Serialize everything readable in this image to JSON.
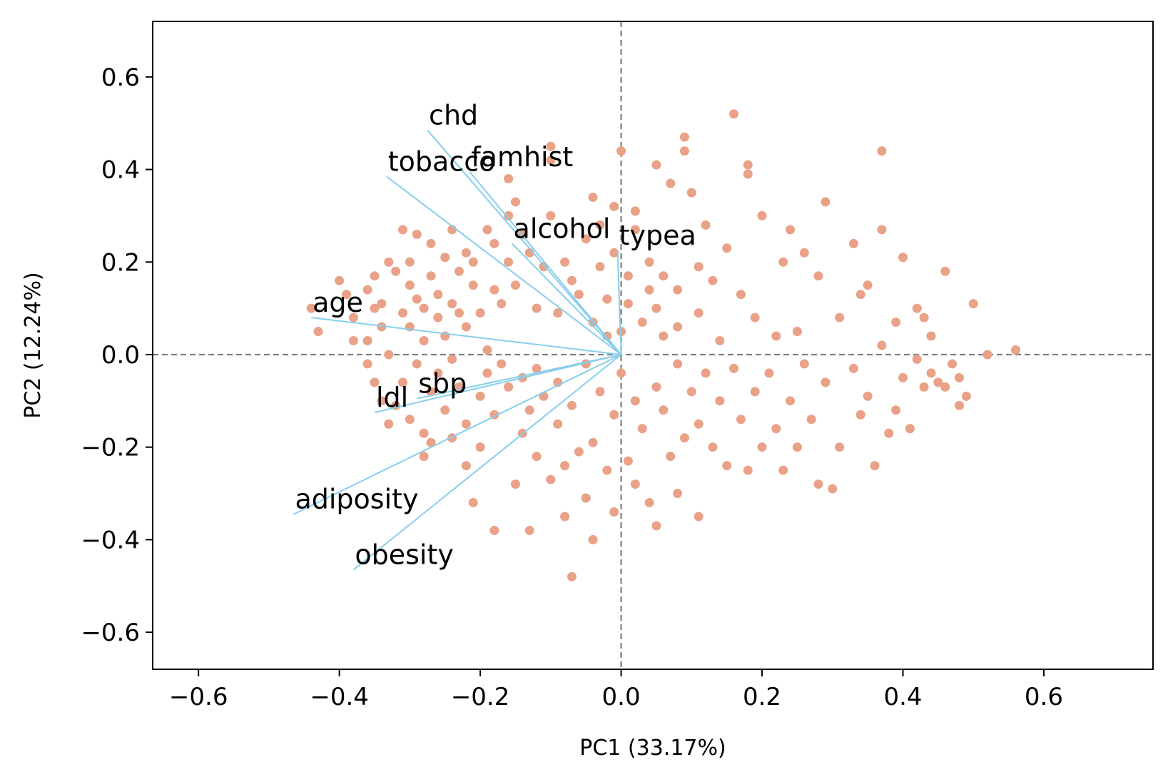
{
  "chart_data": {
    "type": "scatter",
    "title": "",
    "xlabel": "PC1 (33.17%)",
    "ylabel": "PC2 (12.24%)",
    "xlim": [
      -0.665,
      0.755
    ],
    "ylim": [
      -0.68,
      0.72
    ],
    "xticks": [
      -0.6,
      -0.4,
      -0.2,
      0.0,
      0.2,
      0.4,
      0.6
    ],
    "yticks": [
      -0.6,
      -0.4,
      -0.2,
      0.0,
      0.2,
      0.4,
      0.6
    ],
    "xtick_labels": [
      "−0.6",
      "−0.4",
      "−0.2",
      "0.0",
      "0.2",
      "0.4",
      "0.6"
    ],
    "ytick_labels": [
      "−0.6",
      "−0.4",
      "−0.2",
      "0.0",
      "0.2",
      "0.4",
      "0.6"
    ],
    "reference_lines": {
      "x": 0.0,
      "y": 0.0,
      "style": "dashed",
      "color": "#7f7f7f"
    },
    "grid": false,
    "point_color": "#e9a187",
    "vector_color": "#87ceeb",
    "loadings": [
      {
        "name": "chd",
        "x": -0.275,
        "y": 0.485
      },
      {
        "name": "tobacco",
        "x": -0.333,
        "y": 0.385
      },
      {
        "name": "famhist",
        "x": -0.215,
        "y": 0.395
      },
      {
        "name": "alcohol",
        "x": -0.155,
        "y": 0.24
      },
      {
        "name": "typea",
        "x": -0.005,
        "y": 0.225
      },
      {
        "name": "age",
        "x": -0.44,
        "y": 0.08
      },
      {
        "name": "sbp",
        "x": -0.29,
        "y": -0.095
      },
      {
        "name": "ldl",
        "x": -0.35,
        "y": -0.125
      },
      {
        "name": "adiposity",
        "x": -0.465,
        "y": -0.345
      },
      {
        "name": "obesity",
        "x": -0.38,
        "y": -0.465
      }
    ],
    "points": [
      [
        -0.44,
        0.1
      ],
      [
        -0.43,
        0.05
      ],
      [
        -0.4,
        0.16
      ],
      [
        -0.39,
        0.13
      ],
      [
        -0.38,
        0.08
      ],
      [
        -0.38,
        0.03
      ],
      [
        -0.36,
        0.14
      ],
      [
        -0.36,
        0.03
      ],
      [
        -0.35,
        0.1
      ],
      [
        -0.35,
        0.17
      ],
      [
        -0.34,
        0.11
      ],
      [
        -0.34,
        0.06
      ],
      [
        -0.33,
        0.2
      ],
      [
        -0.33,
        0.0
      ],
      [
        -0.32,
        0.18
      ],
      [
        -0.31,
        0.27
      ],
      [
        -0.31,
        0.09
      ],
      [
        -0.3,
        0.15
      ],
      [
        -0.3,
        0.2
      ],
      [
        -0.3,
        0.06
      ],
      [
        -0.29,
        0.26
      ],
      [
        -0.29,
        0.12
      ],
      [
        -0.28,
        0.1
      ],
      [
        -0.28,
        0.03
      ],
      [
        -0.27,
        0.24
      ],
      [
        -0.27,
        0.17
      ],
      [
        -0.26,
        0.08
      ],
      [
        -0.26,
        0.13
      ],
      [
        -0.25,
        0.21
      ],
      [
        -0.25,
        0.04
      ],
      [
        -0.24,
        0.27
      ],
      [
        -0.24,
        0.11
      ],
      [
        -0.23,
        0.18
      ],
      [
        -0.23,
        0.09
      ],
      [
        -0.22,
        0.06
      ],
      [
        -0.22,
        0.22
      ],
      [
        -0.21,
        0.2
      ],
      [
        -0.21,
        0.15
      ],
      [
        -0.2,
        0.09
      ],
      [
        -0.19,
        0.27
      ],
      [
        -0.19,
        0.01
      ],
      [
        -0.18,
        0.24
      ],
      [
        -0.18,
        0.14
      ],
      [
        -0.17,
        0.11
      ],
      [
        -0.16,
        0.38
      ],
      [
        -0.16,
        0.3
      ],
      [
        -0.16,
        0.2
      ],
      [
        -0.15,
        0.33
      ],
      [
        -0.15,
        0.15
      ],
      [
        -0.14,
        0.26
      ],
      [
        -0.13,
        0.22
      ],
      [
        -0.12,
        0.1
      ],
      [
        -0.11,
        0.19
      ],
      [
        -0.1,
        0.45
      ],
      [
        -0.1,
        0.42
      ],
      [
        -0.1,
        0.3
      ],
      [
        -0.09,
        0.09
      ],
      [
        -0.08,
        0.2
      ],
      [
        -0.07,
        0.16
      ],
      [
        -0.06,
        0.13
      ],
      [
        -0.05,
        0.25
      ],
      [
        -0.04,
        0.34
      ],
      [
        -0.04,
        0.07
      ],
      [
        -0.03,
        0.28
      ],
      [
        -0.03,
        0.19
      ],
      [
        -0.02,
        0.12
      ],
      [
        -0.02,
        0.04
      ],
      [
        -0.01,
        0.32
      ],
      [
        -0.01,
        0.22
      ],
      [
        0.0,
        0.44
      ],
      [
        0.0,
        0.05
      ],
      [
        0.01,
        0.17
      ],
      [
        0.01,
        0.11
      ],
      [
        0.02,
        0.27
      ],
      [
        0.02,
        0.31
      ],
      [
        0.03,
        0.07
      ],
      [
        0.04,
        0.2
      ],
      [
        0.04,
        0.14
      ],
      [
        0.05,
        0.1
      ],
      [
        0.05,
        0.41
      ],
      [
        0.06,
        0.04
      ],
      [
        0.06,
        0.17
      ],
      [
        0.07,
        0.37
      ],
      [
        0.08,
        0.06
      ],
      [
        0.08,
        0.14
      ],
      [
        0.09,
        0.47
      ],
      [
        0.09,
        0.44
      ],
      [
        0.1,
        0.35
      ],
      [
        0.11,
        0.09
      ],
      [
        0.11,
        0.19
      ],
      [
        0.12,
        0.28
      ],
      [
        0.13,
        0.16
      ],
      [
        0.14,
        0.03
      ],
      [
        0.15,
        0.23
      ],
      [
        0.16,
        0.52
      ],
      [
        0.17,
        0.13
      ],
      [
        0.18,
        0.39
      ],
      [
        0.18,
        0.41
      ],
      [
        0.19,
        0.08
      ],
      [
        0.2,
        0.3
      ],
      [
        0.22,
        0.04
      ],
      [
        0.23,
        0.2
      ],
      [
        0.24,
        0.27
      ],
      [
        0.25,
        0.05
      ],
      [
        0.26,
        0.22
      ],
      [
        0.28,
        0.17
      ],
      [
        0.29,
        0.33
      ],
      [
        0.31,
        0.08
      ],
      [
        0.33,
        0.24
      ],
      [
        0.34,
        0.13
      ],
      [
        0.35,
        0.15
      ],
      [
        0.37,
        0.27
      ],
      [
        0.37,
        0.44
      ],
      [
        0.39,
        0.07
      ],
      [
        0.4,
        0.21
      ],
      [
        0.42,
        0.1
      ],
      [
        0.43,
        0.08
      ],
      [
        0.44,
        0.04
      ],
      [
        0.46,
        0.18
      ],
      [
        0.5,
        0.11
      ],
      [
        0.52,
        0.0
      ],
      [
        0.56,
        0.01
      ],
      [
        -0.36,
        -0.02
      ],
      [
        -0.35,
        -0.06
      ],
      [
        -0.34,
        -0.1
      ],
      [
        -0.33,
        -0.15
      ],
      [
        -0.32,
        -0.11
      ],
      [
        -0.31,
        -0.06
      ],
      [
        -0.3,
        -0.14
      ],
      [
        -0.29,
        -0.02
      ],
      [
        -0.28,
        -0.17
      ],
      [
        -0.28,
        -0.22
      ],
      [
        -0.27,
        -0.08
      ],
      [
        -0.27,
        -0.19
      ],
      [
        -0.26,
        -0.04
      ],
      [
        -0.25,
        -0.12
      ],
      [
        -0.24,
        -0.18
      ],
      [
        -0.24,
        -0.01
      ],
      [
        -0.23,
        -0.07
      ],
      [
        -0.22,
        -0.15
      ],
      [
        -0.22,
        -0.24
      ],
      [
        -0.21,
        -0.32
      ],
      [
        -0.2,
        -0.09
      ],
      [
        -0.2,
        -0.2
      ],
      [
        -0.19,
        -0.04
      ],
      [
        -0.18,
        -0.13
      ],
      [
        -0.18,
        -0.38
      ],
      [
        -0.17,
        -0.02
      ],
      [
        -0.16,
        -0.07
      ],
      [
        -0.15,
        -0.28
      ],
      [
        -0.14,
        -0.17
      ],
      [
        -0.14,
        -0.05
      ],
      [
        -0.13,
        -0.12
      ],
      [
        -0.13,
        -0.38
      ],
      [
        -0.12,
        -0.03
      ],
      [
        -0.12,
        -0.22
      ],
      [
        -0.11,
        -0.09
      ],
      [
        -0.1,
        -0.27
      ],
      [
        -0.09,
        -0.15
      ],
      [
        -0.09,
        -0.06
      ],
      [
        -0.08,
        -0.35
      ],
      [
        -0.08,
        -0.24
      ],
      [
        -0.07,
        -0.48
      ],
      [
        -0.07,
        -0.11
      ],
      [
        -0.06,
        -0.21
      ],
      [
        -0.05,
        -0.31
      ],
      [
        -0.05,
        -0.02
      ],
      [
        -0.04,
        -0.4
      ],
      [
        -0.04,
        -0.19
      ],
      [
        -0.03,
        -0.08
      ],
      [
        -0.02,
        -0.25
      ],
      [
        -0.01,
        -0.34
      ],
      [
        -0.01,
        -0.13
      ],
      [
        0.0,
        -0.04
      ],
      [
        0.01,
        -0.23
      ],
      [
        0.02,
        -0.28
      ],
      [
        0.02,
        -0.1
      ],
      [
        0.03,
        -0.16
      ],
      [
        0.04,
        -0.32
      ],
      [
        0.05,
        -0.07
      ],
      [
        0.05,
        -0.37
      ],
      [
        0.06,
        -0.12
      ],
      [
        0.07,
        -0.22
      ],
      [
        0.08,
        -0.02
      ],
      [
        0.08,
        -0.3
      ],
      [
        0.09,
        -0.18
      ],
      [
        0.1,
        -0.08
      ],
      [
        0.11,
        -0.15
      ],
      [
        0.11,
        -0.35
      ],
      [
        0.12,
        -0.04
      ],
      [
        0.13,
        -0.2
      ],
      [
        0.14,
        -0.1
      ],
      [
        0.15,
        -0.24
      ],
      [
        0.16,
        -0.03
      ],
      [
        0.17,
        -0.14
      ],
      [
        0.18,
        -0.25
      ],
      [
        0.19,
        -0.08
      ],
      [
        0.2,
        -0.2
      ],
      [
        0.21,
        -0.04
      ],
      [
        0.22,
        -0.16
      ],
      [
        0.23,
        -0.25
      ],
      [
        0.24,
        -0.1
      ],
      [
        0.25,
        -0.2
      ],
      [
        0.26,
        -0.02
      ],
      [
        0.27,
        -0.14
      ],
      [
        0.28,
        -0.28
      ],
      [
        0.29,
        -0.06
      ],
      [
        0.3,
        -0.29
      ],
      [
        0.31,
        -0.2
      ],
      [
        0.33,
        -0.03
      ],
      [
        0.34,
        -0.13
      ],
      [
        0.35,
        -0.09
      ],
      [
        0.36,
        -0.24
      ],
      [
        0.37,
        0.02
      ],
      [
        0.38,
        -0.17
      ],
      [
        0.39,
        -0.12
      ],
      [
        0.4,
        -0.05
      ],
      [
        0.41,
        -0.16
      ],
      [
        0.42,
        -0.01
      ],
      [
        0.43,
        -0.07
      ],
      [
        0.44,
        -0.04
      ],
      [
        0.45,
        -0.06
      ],
      [
        0.46,
        -0.07
      ],
      [
        0.47,
        -0.02
      ],
      [
        0.48,
        -0.11
      ],
      [
        0.48,
        -0.05
      ],
      [
        0.49,
        -0.09
      ]
    ]
  }
}
